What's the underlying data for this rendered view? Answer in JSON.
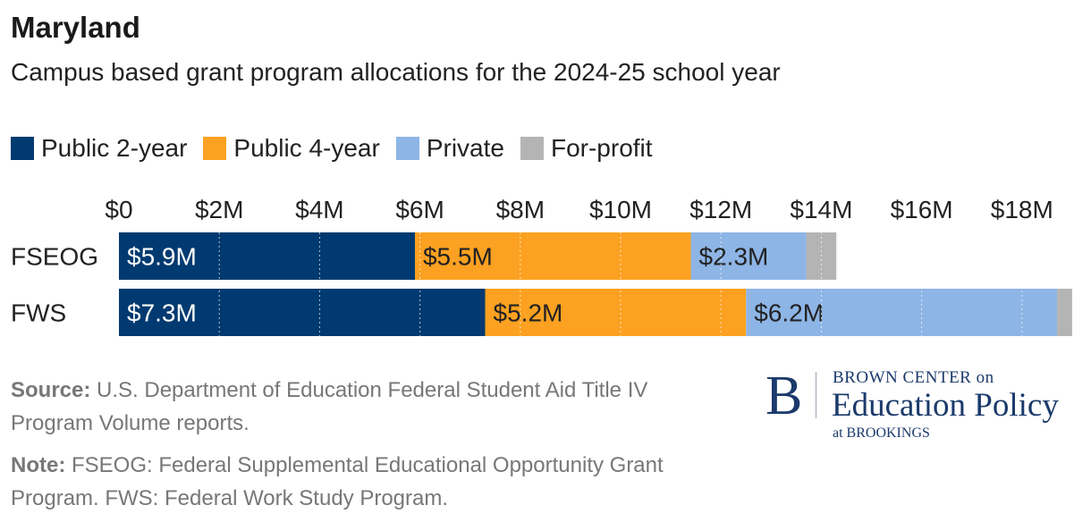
{
  "title": "Maryland",
  "subtitle": "Campus based grant program allocations for the 2024-25 school year",
  "legend": [
    {
      "label": "Public 2-year",
      "color": "#003a70"
    },
    {
      "label": "Public 4-year",
      "color": "#fca121"
    },
    {
      "label": "Private",
      "color": "#8db5e6"
    },
    {
      "label": "For-profit",
      "color": "#b4b4b4"
    }
  ],
  "chart_data": {
    "type": "bar",
    "orientation": "horizontal",
    "stacked": true,
    "categories": [
      "FSEOG",
      "FWS"
    ],
    "series": [
      {
        "name": "Public 2-year",
        "color": "#003a70",
        "values": [
          5.9,
          7.3
        ],
        "labels": [
          "$5.9M",
          "$7.3M"
        ]
      },
      {
        "name": "Public 4-year",
        "color": "#fca121",
        "values": [
          5.5,
          5.2
        ],
        "labels": [
          "$5.5M",
          "$5.2M"
        ]
      },
      {
        "name": "Private",
        "color": "#8db5e6",
        "values": [
          2.3,
          6.2
        ],
        "labels": [
          "$2.3M",
          "$6.2M"
        ]
      },
      {
        "name": "For-profit",
        "color": "#b4b4b4",
        "values": [
          0.6,
          0.3
        ],
        "labels": [
          "",
          ""
        ]
      }
    ],
    "x_ticks": [
      "$0",
      "$2M",
      "$4M",
      "$6M",
      "$8M",
      "$10M",
      "$12M",
      "$14M",
      "$16M",
      "$18M"
    ],
    "x_tick_values": [
      0,
      2,
      4,
      6,
      8,
      10,
      12,
      14,
      16,
      18
    ],
    "xlim": [
      0,
      19.2
    ],
    "xlabel": "",
    "ylabel": "",
    "grid": true,
    "legend_position": "top"
  },
  "source": {
    "label": "Source:",
    "text": " U.S. Department of Education Federal Student Aid Title IV Program Volume reports."
  },
  "note": {
    "label": "Note:",
    "text": " FSEOG: Federal Supplemental Educational Opportunity Grant Program. FWS: Federal Work Study Program."
  },
  "logo": {
    "letter": "B",
    "top_line": "BROWN CENTER on",
    "main_line": "Education Policy",
    "bottom_line": "at BROOKINGS"
  }
}
